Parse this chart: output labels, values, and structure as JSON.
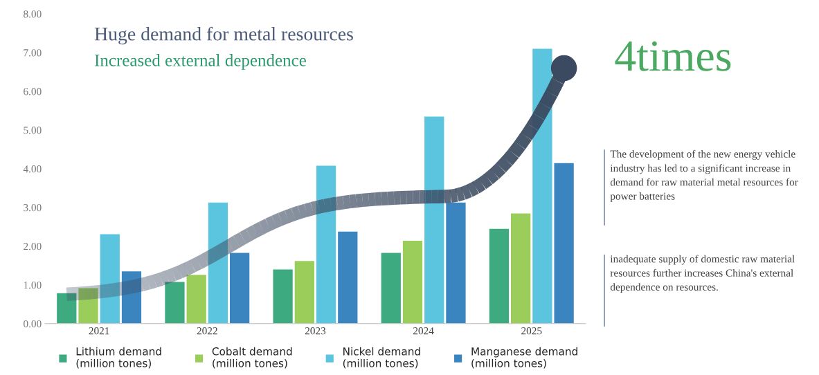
{
  "chart_data": {
    "type": "bar",
    "title": "Huge demand for metal resources",
    "subtitle": "Increased external dependence",
    "categories": [
      "2021",
      "2022",
      "2023",
      "2024",
      "2025"
    ],
    "series": [
      {
        "name": "Lithium demand\n(million tones)",
        "color": "#3daa80",
        "values": [
          0.8,
          1.09,
          1.41,
          1.84,
          2.46
        ]
      },
      {
        "name": "Cobalt demand\n(million tones)",
        "color": "#9acd5a",
        "values": [
          0.93,
          1.27,
          1.63,
          2.15,
          2.86
        ]
      },
      {
        "name": "Nickel demand\n(million tones)",
        "color": "#5bc4de",
        "values": [
          2.32,
          3.14,
          4.09,
          5.36,
          7.11
        ]
      },
      {
        "name": "Manganese demand\n(million tones)",
        "color": "#3a85c0",
        "values": [
          1.36,
          1.84,
          2.39,
          3.14,
          4.16
        ]
      }
    ],
    "ylim": [
      0,
      8
    ],
    "yticks": [
      {
        "value": 0,
        "label": "0.00"
      },
      {
        "value": 1,
        "label": "1.00"
      },
      {
        "value": 2,
        "label": "2.00"
      },
      {
        "value": 3,
        "label": "3.00"
      },
      {
        "value": 4,
        "label": "4.00"
      },
      {
        "value": 5,
        "label": "5.00"
      },
      {
        "value": 6,
        "label": "6.00"
      },
      {
        "value": 7,
        "label": "7.00"
      },
      {
        "value": 8,
        "label": "8.00"
      }
    ],
    "grid": false,
    "legend": "bottom",
    "annotations": [
      "4times",
      "The development of the new energy vehicle industry has led to a significant increase in demand for raw material metal resources for power batteries",
      "inadequate supply of domestic raw material resources further increases China's external dependence on resources."
    ]
  }
}
